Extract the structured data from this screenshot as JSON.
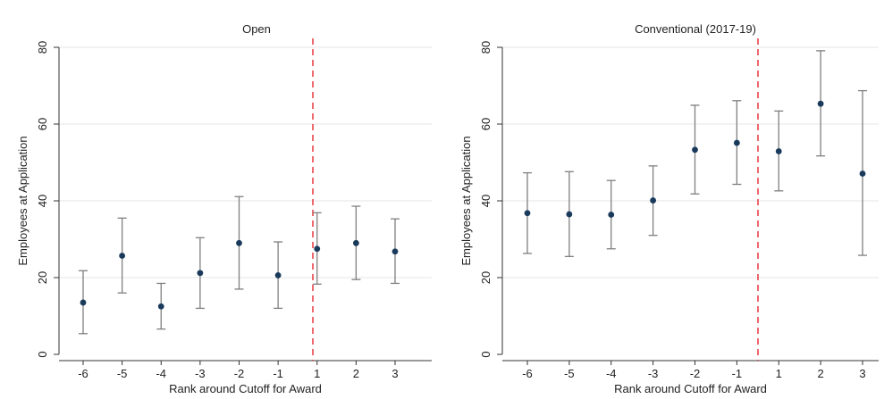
{
  "chart_data": [
    {
      "type": "scatter",
      "subtype": "point-estimate-with-confidence-intervals",
      "title": "Open",
      "xlabel": "Rank around Cutoff for Award",
      "ylabel": "Employees at Application",
      "categories": [
        "-6",
        "-5",
        "-4",
        "-3",
        "-2",
        "-1",
        "1",
        "2",
        "3"
      ],
      "values": [
        13.5,
        25.7,
        12.5,
        21.2,
        29.0,
        20.6,
        27.5,
        29.0,
        26.8
      ],
      "ci_lower": [
        5.4,
        16.0,
        6.6,
        12.0,
        17.0,
        12.0,
        18.3,
        19.5,
        18.5
      ],
      "ci_upper": [
        21.8,
        35.5,
        18.5,
        30.4,
        41.1,
        29.3,
        36.9,
        38.6,
        35.3
      ],
      "ylim": [
        0,
        80
      ],
      "yticks": [
        "0",
        "20",
        "40",
        "60",
        "80"
      ],
      "cutoff_between": [
        "-1",
        "1"
      ],
      "grid": true,
      "colors": {
        "point": "#1a3a5c",
        "whisker": "#7f7f7f",
        "cutoff": "#e8363d",
        "grid": "#e6e6e6",
        "axis": "#333333"
      }
    },
    {
      "type": "scatter",
      "subtype": "point-estimate-with-confidence-intervals",
      "title": "Conventional (2017-19)",
      "xlabel": "Rank around Cutoff for Award",
      "ylabel": "Employees at Application",
      "categories": [
        "-6",
        "-5",
        "-4",
        "-3",
        "-2",
        "-1",
        "1",
        "2",
        "3"
      ],
      "values": [
        36.8,
        36.5,
        36.4,
        40.1,
        53.3,
        55.1,
        52.9,
        65.3,
        47.1
      ],
      "ci_lower": [
        26.3,
        25.5,
        27.5,
        31.0,
        41.8,
        44.3,
        42.6,
        51.7,
        25.8
      ],
      "ci_upper": [
        47.3,
        47.6,
        45.3,
        49.1,
        64.9,
        66.1,
        63.4,
        79.1,
        68.7
      ],
      "ylim": [
        0,
        80
      ],
      "yticks": [
        "0",
        "20",
        "40",
        "60",
        "80"
      ],
      "cutoff_between": [
        "-1",
        "1"
      ],
      "grid": true,
      "colors": {
        "point": "#1a3a5c",
        "whisker": "#7f7f7f",
        "cutoff": "#e8363d",
        "grid": "#e6e6e6",
        "axis": "#333333"
      }
    }
  ]
}
